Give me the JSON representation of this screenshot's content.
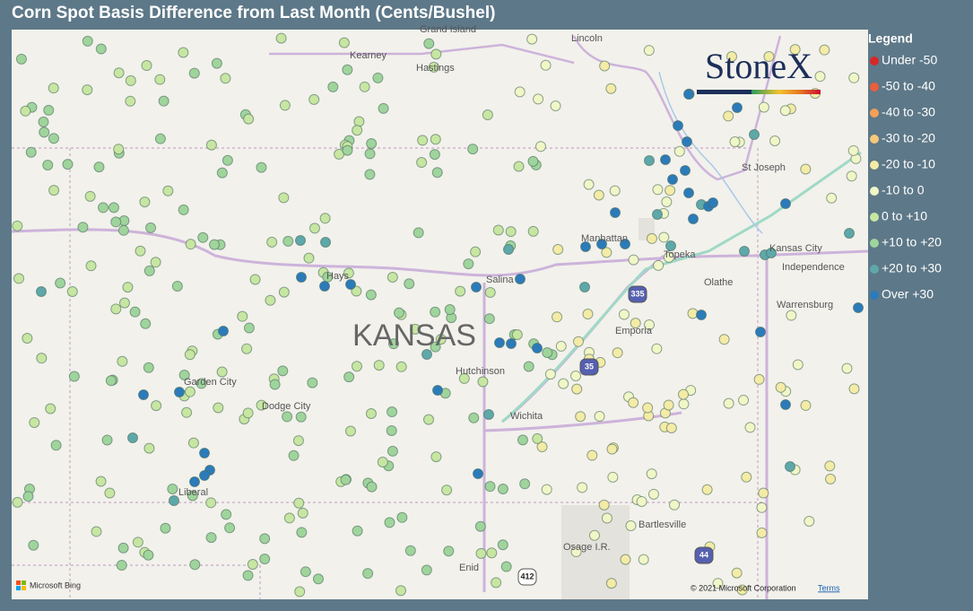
{
  "title": "Corn Spot Basis Difference from Last Month (Cents/Bushel)",
  "legend": {
    "title": "Legend",
    "items": [
      {
        "label": "Under -50",
        "color": "#d62728"
      },
      {
        "label": "-50 to -40",
        "color": "#e8603c"
      },
      {
        "label": "-40 to -30",
        "color": "#f0a05a"
      },
      {
        "label": "-30 to -20",
        "color": "#f5c87a"
      },
      {
        "label": "-20 to -10",
        "color": "#f3eba6"
      },
      {
        "label": "-10 to 0",
        "color": "#f1f6c6"
      },
      {
        "label": "0 to +10",
        "color": "#c7e6a2"
      },
      {
        "label": "+10 to +20",
        "color": "#9fd49c"
      },
      {
        "label": "+20 to +30",
        "color": "#5ea8aa"
      },
      {
        "label": "Over +30",
        "color": "#2b7bba"
      }
    ]
  },
  "map": {
    "state_label": "KANSAS",
    "places": [
      "Grand Island",
      "Lincoln",
      "Kearney",
      "Hastings",
      "St Joseph",
      "Manhattan",
      "Topeka",
      "Kansas City",
      "Independence",
      "Olathe",
      "Hays",
      "Salina",
      "Emporia",
      "Warrensburg",
      "Hutchinson",
      "Garden City",
      "Dodge City",
      "Wichita",
      "Liberal",
      "Bartlesville",
      "Osage I.R.",
      "Enid"
    ],
    "shields": [
      "335",
      "35",
      "44",
      "412"
    ]
  },
  "logo": "StoneX",
  "attribution": {
    "provider": "Microsoft Bing",
    "copyright": "© 2021 Microsoft Corporation",
    "terms": "Terms"
  }
}
